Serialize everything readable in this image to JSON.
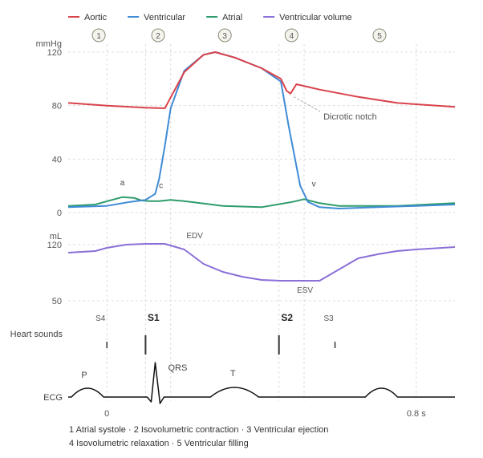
{
  "chart_data": {
    "type": "line",
    "legend": {
      "placement": "top-left",
      "items": [
        {
          "label": "Aortic",
          "color": "#d9434b"
        },
        {
          "label": "Ventricular",
          "color": "#3f8bd6"
        },
        {
          "label": "Atrial",
          "color": "#2e9c6b"
        },
        {
          "label": "Ventricular volume",
          "color": "#8a6fd8"
        }
      ]
    },
    "phase_markers": [
      "1",
      "2",
      "3",
      "4",
      "5"
    ],
    "x_ticks": [
      {
        "t": 0.0,
        "label": "0"
      },
      {
        "t": 0.8,
        "label": "0.8 s"
      }
    ],
    "pressure_panel": {
      "unit_label": "mmHg",
      "ylim": [
        0,
        120
      ],
      "y_ticks": [
        0,
        40,
        80,
        120
      ],
      "series": [
        {
          "name": "Aortic",
          "color": "#d9434b",
          "points": [
            [
              -0.1,
              82
            ],
            [
              0.0,
              80
            ],
            [
              0.1,
              78.5
            ],
            [
              0.15,
              78
            ],
            [
              0.2,
              105
            ],
            [
              0.25,
              118
            ],
            [
              0.28,
              120
            ],
            [
              0.33,
              116
            ],
            [
              0.4,
              108
            ],
            [
              0.45,
              100
            ],
            [
              0.465,
              91
            ],
            [
              0.475,
              89
            ],
            [
              0.49,
              96
            ],
            [
              0.55,
              92
            ],
            [
              0.65,
              86.5
            ],
            [
              0.75,
              82
            ],
            [
              0.9,
              79
            ]
          ]
        },
        {
          "name": "Ventricular",
          "color": "#3f8bd6",
          "points": [
            [
              -0.1,
              4
            ],
            [
              0.0,
              5
            ],
            [
              0.06,
              8
            ],
            [
              0.1,
              9.5
            ],
            [
              0.125,
              14
            ],
            [
              0.135,
              25
            ],
            [
              0.15,
              50
            ],
            [
              0.165,
              78
            ],
            [
              0.2,
              106
            ],
            [
              0.25,
              118
            ],
            [
              0.28,
              120
            ],
            [
              0.33,
              116
            ],
            [
              0.4,
              108
            ],
            [
              0.45,
              98
            ],
            [
              0.47,
              65
            ],
            [
              0.5,
              20
            ],
            [
              0.52,
              8
            ],
            [
              0.55,
              4
            ],
            [
              0.6,
              3
            ],
            [
              0.7,
              4
            ],
            [
              0.8,
              5
            ],
            [
              0.9,
              6
            ]
          ]
        },
        {
          "name": "Atrial",
          "color": "#2e9c6b",
          "points": [
            [
              -0.1,
              5
            ],
            [
              -0.03,
              6
            ],
            [
              0.02,
              10
            ],
            [
              0.04,
              11.5
            ],
            [
              0.07,
              11
            ],
            [
              0.09,
              9
            ],
            [
              0.11,
              8.5
            ],
            [
              0.135,
              8.5
            ],
            [
              0.165,
              9.5
            ],
            [
              0.2,
              8.5
            ],
            [
              0.3,
              5
            ],
            [
              0.4,
              4
            ],
            [
              0.48,
              8
            ],
            [
              0.51,
              10
            ],
            [
              0.55,
              7
            ],
            [
              0.6,
              5
            ],
            [
              0.75,
              5
            ],
            [
              0.9,
              7
            ]
          ]
        }
      ],
      "annotations": [
        {
          "text": "a",
          "t": 0.04,
          "value": 12
        },
        {
          "text": "c",
          "t": 0.14,
          "value": 10
        },
        {
          "text": "v",
          "t": 0.535,
          "value": 11
        },
        {
          "text": "Dicrotic notch",
          "t": 0.56,
          "value": 72,
          "points_to": {
            "t": 0.475,
            "value": 89
          }
        }
      ]
    },
    "volume_panel": {
      "unit_label": "mL",
      "ylim": [
        40,
        130
      ],
      "y_ticks": [
        50,
        120
      ],
      "series": [
        {
          "name": "Ventricular volume",
          "color": "#8a6fd8",
          "points": [
            [
              -0.1,
              110
            ],
            [
              -0.03,
              112
            ],
            [
              0.0,
              116
            ],
            [
              0.05,
              120
            ],
            [
              0.1,
              121
            ],
            [
              0.15,
              121
            ],
            [
              0.2,
              114
            ],
            [
              0.25,
              96
            ],
            [
              0.3,
              86
            ],
            [
              0.35,
              80
            ],
            [
              0.4,
              76
            ],
            [
              0.45,
              75
            ],
            [
              0.5,
              75
            ],
            [
              0.55,
              75
            ],
            [
              0.6,
              89
            ],
            [
              0.65,
              103
            ],
            [
              0.7,
              108
            ],
            [
              0.75,
              112
            ],
            [
              0.8,
              114
            ],
            [
              0.9,
              117
            ]
          ]
        }
      ],
      "annotations": [
        {
          "text": "EDV",
          "t": 0.16,
          "value": 121
        },
        {
          "text": "ESV",
          "t": 0.45,
          "value": 75
        }
      ]
    },
    "heart_sounds": {
      "label": "Heart sounds",
      "items": [
        {
          "name": "S4",
          "t": 0.0,
          "strong": false
        },
        {
          "name": "S1",
          "t": 0.1,
          "strong": true
        },
        {
          "name": "S2",
          "t": 0.445,
          "strong": true
        },
        {
          "name": "S3",
          "t": 0.59,
          "strong": false
        }
      ]
    },
    "ecg": {
      "label": "ECG",
      "waves": [
        {
          "text": "P",
          "t": -0.05
        },
        {
          "text": "QRS",
          "t": 0.125
        },
        {
          "text": "T",
          "t": 0.33
        }
      ]
    }
  },
  "footnote": {
    "line1": "1 Atrial systole · 2 Isovolumetric contraction · 3 Ventricular ejection",
    "line2": "4 Isovolumetric relaxation · 5 Ventricular filling"
  }
}
